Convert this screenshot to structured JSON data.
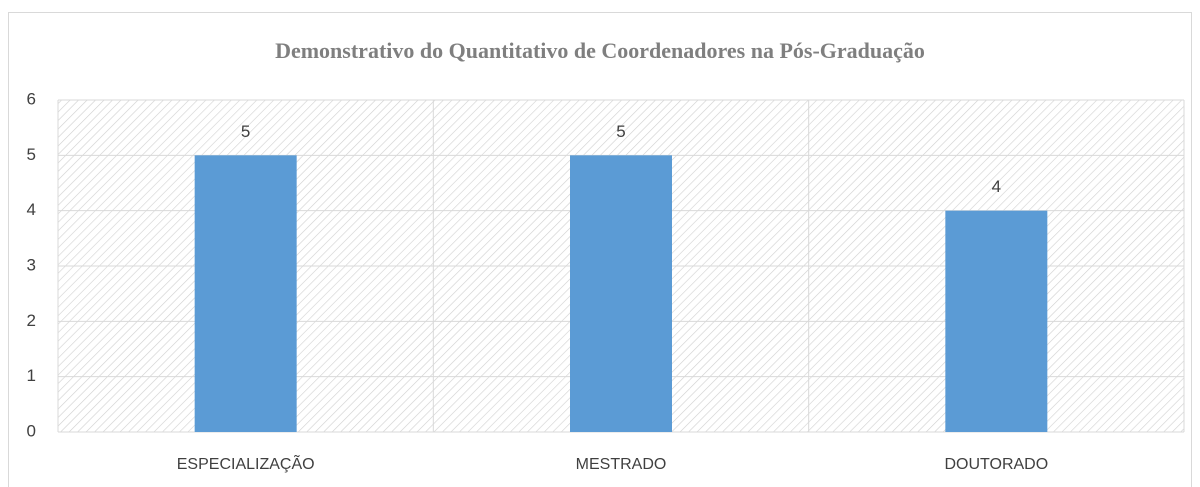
{
  "chart_data": {
    "type": "bar",
    "title": "Demonstrativo do Quantitativo de Coordenadores na Pós-Graduação",
    "categories": [
      "ESPECIALIZAÇÃO",
      "MESTRADO",
      "DOUTORADO"
    ],
    "values": [
      5,
      5,
      4
    ],
    "color": "#5b9bd5",
    "ylim": [
      0,
      6
    ],
    "yticks": [
      0,
      1,
      2,
      3,
      4,
      5,
      6
    ],
    "grid": true
  }
}
